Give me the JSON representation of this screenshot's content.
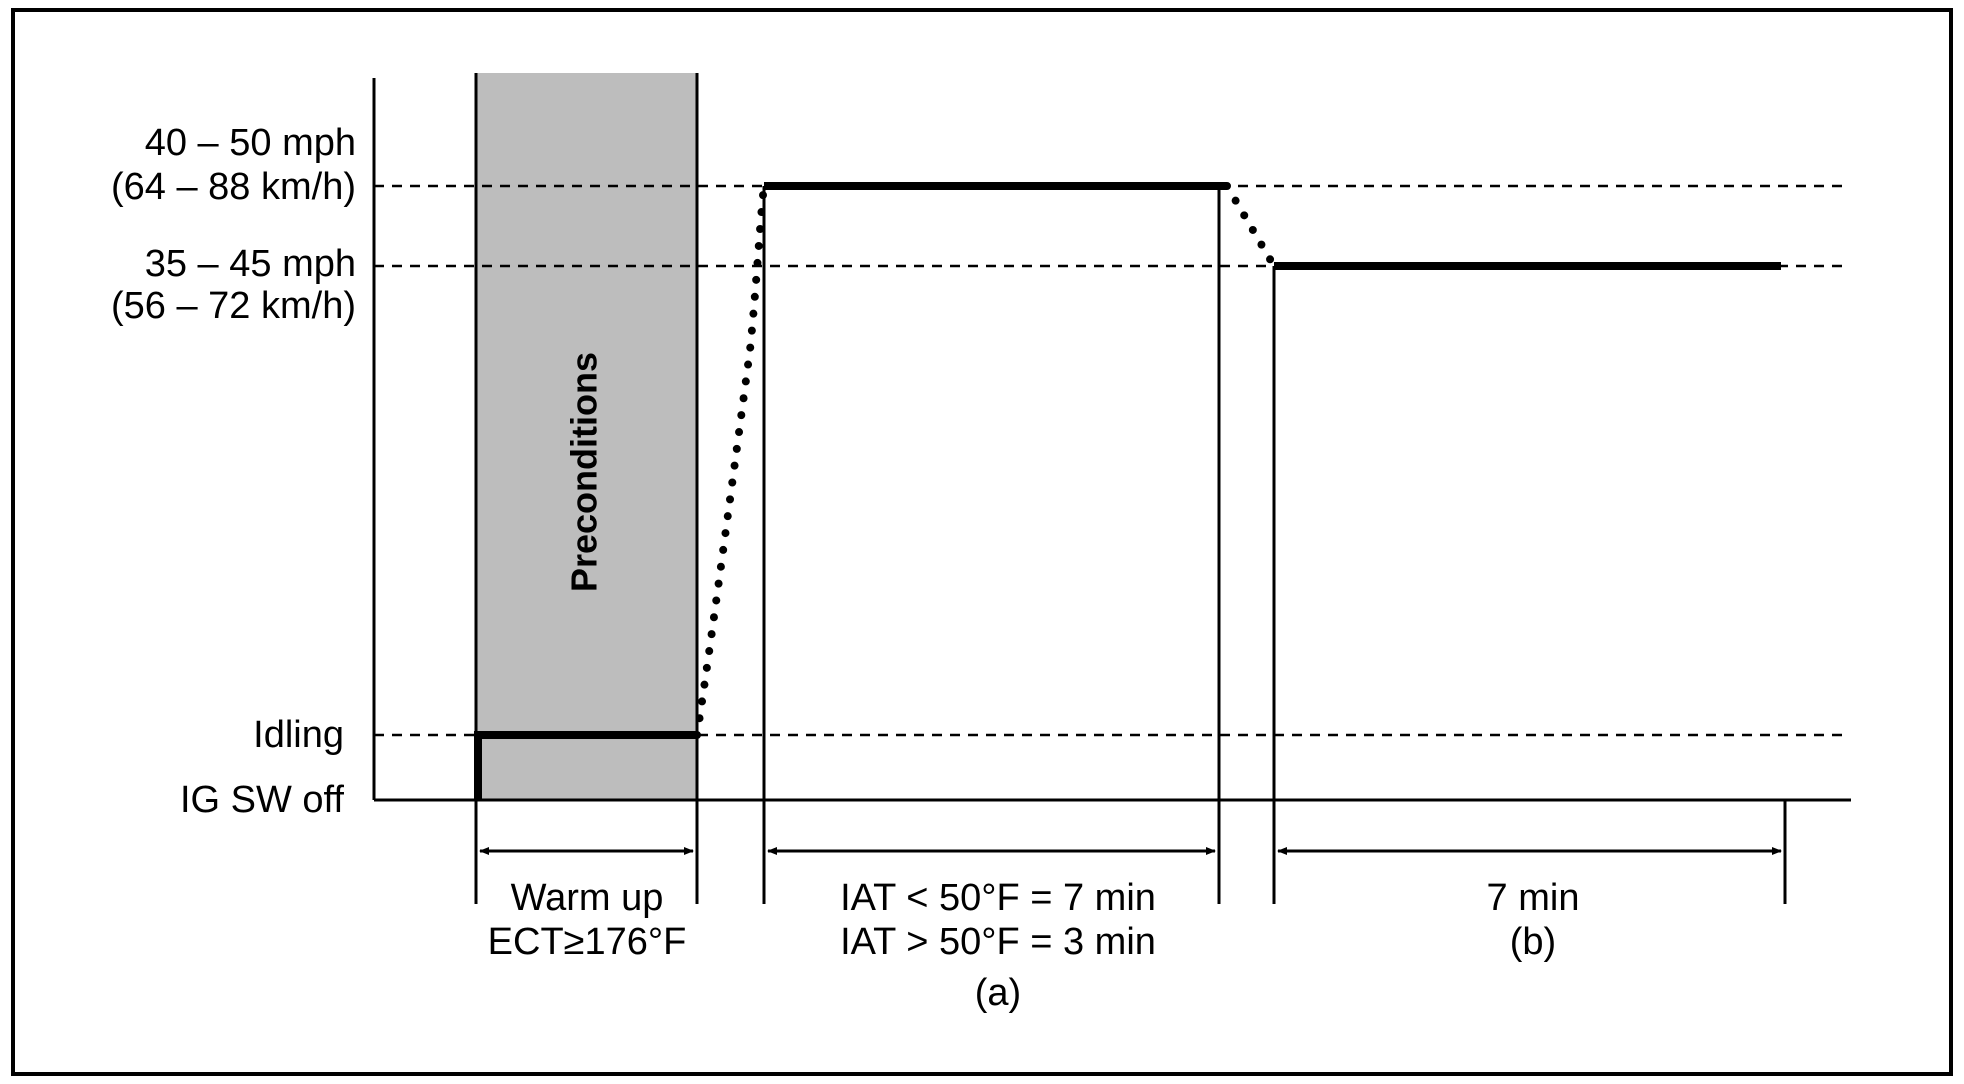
{
  "speed_levels": [
    "40 – 50 mph",
    "(64 – 88 km/h)",
    "35 – 45 mph",
    "(56 – 72 km/h)",
    "Idling",
    "IG SW off"
  ],
  "region_label": "Preconditions",
  "phases": [
    {
      "lines": [
        "Warm up",
        "ECT≥176°F"
      ]
    },
    {
      "lines": [
        "IAT < 50°F = 7 min",
        "IAT > 50°F = 3 min",
        "(a)"
      ]
    },
    {
      "lines": [
        "7 min",
        "(b)"
      ]
    }
  ]
}
